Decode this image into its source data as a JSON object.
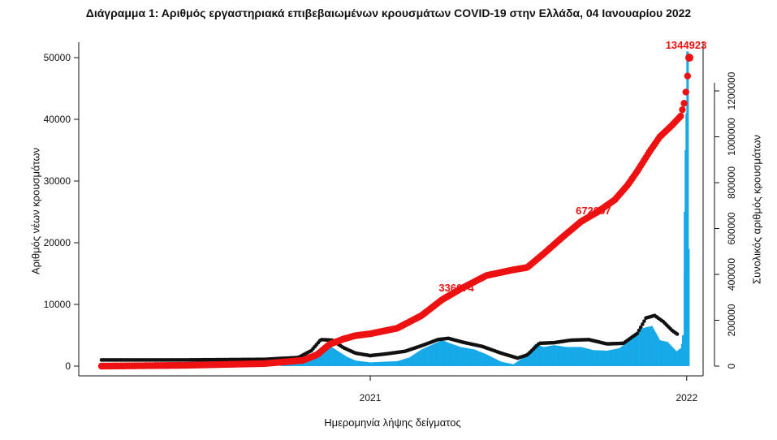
{
  "chart_data": {
    "type": "bar",
    "title": "Διάγραμμα 1: Αριθμός εργαστηριακά επιβεβαιωμένων κρουσμάτων COVID-19 στην Ελλάδα, 04 Ιανουαρίου 2022",
    "xlabel": "Ημερομηνία λήψης δείγματος",
    "ylabel": "Αριθμός νέων κρουσμάτων",
    "ylabel_right": "Συνολικός αριθμός κρουσμάτων",
    "ylim": [
      0,
      52000
    ],
    "ylim_right": [
      0,
      1370000
    ],
    "yticks": [
      "0",
      "10000",
      "20000",
      "30000",
      "40000",
      "50000"
    ],
    "yticks_right": [
      "0",
      "200000",
      "400000",
      "600000",
      "800000",
      "1000000",
      "1200000"
    ],
    "xticks": [
      "2021",
      "2022"
    ],
    "colors": {
      "bars": "#17a9e8",
      "moving_average": "#111111",
      "cumulative": "#ee1111"
    },
    "annotations": [
      "336074",
      "672057",
      "1344923"
    ],
    "series": [
      {
        "type": "bar",
        "x": [
          "2020-02-26",
          "2020-04-01",
          "2020-06-01",
          "2020-08-01",
          "2020-09-15",
          "2020-10-15",
          "2020-11-01",
          "2020-11-08",
          "2020-11-15",
          "2020-11-25",
          "2020-12-05",
          "2020-12-15",
          "2021-01-01",
          "2021-01-15",
          "2021-02-01",
          "2021-02-15",
          "2021-03-01",
          "2021-03-15",
          "2021-03-25",
          "2021-04-01",
          "2021-04-15",
          "2021-05-01",
          "2021-05-15",
          "2021-06-01",
          "2021-06-15",
          "2021-07-01",
          "2021-07-10",
          "2021-07-20",
          "2021-08-01",
          "2021-08-15",
          "2021-09-01",
          "2021-09-15",
          "2021-10-01",
          "2021-10-15",
          "2021-11-01",
          "2021-11-08",
          "2021-11-15",
          "2021-11-22",
          "2021-12-01",
          "2021-12-10",
          "2021-12-20",
          "2021-12-25",
          "2021-12-28",
          "2021-12-30",
          "2021-12-31",
          "2022-01-01",
          "2022-01-02",
          "2022-01-03"
        ],
        "values": [
          10,
          50,
          20,
          150,
          300,
          800,
          2600,
          3400,
          3300,
          2400,
          1500,
          900,
          600,
          700,
          800,
          1400,
          2700,
          3600,
          4200,
          3800,
          3100,
          2700,
          1900,
          700,
          300,
          1800,
          3600,
          3100,
          3400,
          3100,
          3100,
          2600,
          2500,
          2900,
          4600,
          6000,
          6300,
          6500,
          4200,
          3900,
          2400,
          2900,
          5000,
          25000,
          35000,
          41000,
          51000,
          19000
        ]
      },
      {
        "type": "line",
        "name": "",
        "x": [
          "2020-02-26",
          "2020-06-01",
          "2020-09-01",
          "2020-10-10",
          "2020-10-25",
          "2020-11-05",
          "2020-11-18",
          "2020-12-01",
          "2020-12-15",
          "2021-01-01",
          "2021-01-20",
          "2021-02-10",
          "2021-03-01",
          "2021-03-20",
          "2021-04-01",
          "2021-04-20",
          "2021-05-10",
          "2021-06-01",
          "2021-06-20",
          "2021-07-01",
          "2021-07-15",
          "2021-08-01",
          "2021-08-20",
          "2021-09-10",
          "2021-10-01",
          "2021-10-20",
          "2021-11-05",
          "2021-11-15",
          "2021-11-25",
          "2021-12-05",
          "2021-12-15",
          "2021-12-22"
        ],
        "values": [
          1000,
          1000,
          1100,
          1400,
          2500,
          4300,
          4200,
          3000,
          2100,
          1700,
          2000,
          2400,
          3300,
          4300,
          4500,
          3800,
          3200,
          2100,
          1300,
          1800,
          3700,
          3800,
          4200,
          4300,
          3600,
          3700,
          5300,
          7800,
          8200,
          7200,
          5800,
          5100
        ]
      },
      {
        "type": "line",
        "name": "",
        "x": [
          "2020-02-26",
          "2020-06-01",
          "2020-09-01",
          "2020-10-15",
          "2020-11-01",
          "2020-11-15",
          "2020-12-01",
          "2020-12-15",
          "2021-01-01",
          "2021-02-01",
          "2021-03-01",
          "2021-03-25",
          "2021-04-15",
          "2021-05-15",
          "2021-06-15",
          "2021-07-01",
          "2021-07-20",
          "2021-08-10",
          "2021-09-01",
          "2021-09-20",
          "2021-10-10",
          "2021-10-25",
          "2021-11-05",
          "2021-11-20",
          "2021-12-01",
          "2021-12-15",
          "2021-12-25",
          "2021-12-30",
          "2022-01-01",
          "2022-01-03",
          "2022-01-04"
        ],
        "values": [
          0,
          3400,
          11000,
          25000,
          50000,
          95000,
          118000,
          133000,
          141000,
          165000,
          220000,
          290000,
          336074,
          395000,
          420000,
          430000,
          490000,
          560000,
          630000,
          672057,
          725000,
          790000,
          850000,
          940000,
          1000000,
          1050000,
          1090000,
          1160000,
          1230000,
          1300000,
          1344923
        ]
      }
    ]
  }
}
